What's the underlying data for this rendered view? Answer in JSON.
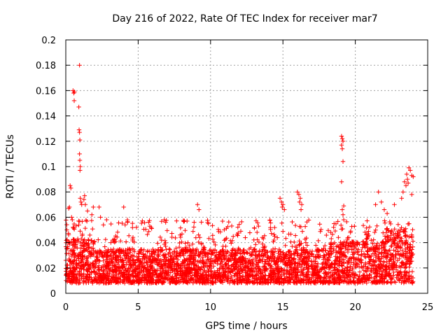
{
  "chart_data": {
    "type": "scatter",
    "title": "Day 216 of 2022, Rate Of TEC Index for receiver mar7",
    "xlabel": "GPS time / hours",
    "ylabel": "ROTI / TECUs",
    "xlim": [
      0,
      25
    ],
    "ylim": [
      0,
      0.2
    ],
    "xticks": [
      0,
      5,
      10,
      15,
      20,
      25
    ],
    "xtick_labels": [
      "0",
      "5",
      "10",
      "15",
      "20",
      "25"
    ],
    "yticks": [
      0,
      0.02,
      0.04,
      0.06,
      0.08,
      0.1,
      0.12,
      0.14,
      0.16,
      0.18,
      0.2
    ],
    "ytick_labels": [
      "0",
      "0.02",
      "0.04",
      "0.06",
      "0.08",
      "0.1",
      "0.12",
      "0.14",
      "0.16",
      "0.18",
      "0.2"
    ],
    "grid": true,
    "marker": "+",
    "color": "#ff0000",
    "series": [
      {
        "name": "ROTI",
        "points": [
          [
            0.3,
            0.085
          ],
          [
            0.35,
            0.083
          ],
          [
            0.2,
            0.067
          ],
          [
            0.25,
            0.068
          ],
          [
            0.4,
            0.06
          ],
          [
            0.45,
            0.058
          ],
          [
            0.5,
            0.16
          ],
          [
            0.55,
            0.158
          ],
          [
            0.6,
            0.159
          ],
          [
            0.58,
            0.152
          ],
          [
            0.95,
            0.18
          ],
          [
            0.9,
            0.147
          ],
          [
            0.92,
            0.129
          ],
          [
            0.95,
            0.127
          ],
          [
            0.97,
            0.121
          ],
          [
            0.95,
            0.11
          ],
          [
            0.97,
            0.105
          ],
          [
            1.0,
            0.1
          ],
          [
            0.98,
            0.097
          ],
          [
            1.0,
            0.075
          ],
          [
            1.05,
            0.072
          ],
          [
            1.1,
            0.07
          ],
          [
            1.3,
            0.077
          ],
          [
            1.25,
            0.074
          ],
          [
            1.35,
            0.07
          ],
          [
            1.5,
            0.065
          ],
          [
            1.8,
            0.062
          ],
          [
            1.9,
            0.068
          ],
          [
            2.3,
            0.068
          ],
          [
            2.4,
            0.06
          ],
          [
            2.6,
            0.054
          ],
          [
            4.0,
            0.068
          ],
          [
            4.1,
            0.054
          ],
          [
            5.8,
            0.053
          ],
          [
            5.9,
            0.052
          ],
          [
            6.8,
            0.058
          ],
          [
            6.9,
            0.056
          ],
          [
            9.1,
            0.07
          ],
          [
            9.2,
            0.066
          ],
          [
            9.8,
            0.056
          ],
          [
            9.85,
            0.055
          ],
          [
            14.8,
            0.075
          ],
          [
            14.9,
            0.072
          ],
          [
            15.0,
            0.07
          ],
          [
            15.1,
            0.066
          ],
          [
            14.95,
            0.068
          ],
          [
            16.0,
            0.08
          ],
          [
            16.1,
            0.078
          ],
          [
            16.2,
            0.075
          ],
          [
            16.15,
            0.072
          ],
          [
            16.3,
            0.07
          ],
          [
            16.25,
            0.066
          ],
          [
            19.05,
            0.124
          ],
          [
            19.1,
            0.122
          ],
          [
            19.15,
            0.12
          ],
          [
            19.05,
            0.117
          ],
          [
            19.1,
            0.114
          ],
          [
            19.15,
            0.104
          ],
          [
            19.05,
            0.088
          ],
          [
            19.2,
            0.069
          ],
          [
            19.1,
            0.066
          ],
          [
            19.15,
            0.062
          ],
          [
            19.2,
            0.058
          ],
          [
            21.6,
            0.08
          ],
          [
            21.8,
            0.072
          ],
          [
            21.4,
            0.07
          ],
          [
            22.0,
            0.066
          ],
          [
            22.2,
            0.063
          ],
          [
            22.7,
            0.07
          ],
          [
            23.2,
            0.075
          ],
          [
            23.3,
            0.08
          ],
          [
            23.5,
            0.085
          ],
          [
            23.6,
            0.09
          ],
          [
            23.7,
            0.099
          ],
          [
            23.8,
            0.097
          ],
          [
            23.9,
            0.093
          ],
          [
            24.0,
            0.092
          ],
          [
            23.4,
            0.088
          ],
          [
            23.55,
            0.094
          ],
          [
            23.65,
            0.087
          ],
          [
            23.9,
            0.078
          ]
        ],
        "baseline": {
          "x_range": [
            0,
            24
          ],
          "typical_range": [
            0.008,
            0.035
          ],
          "secondary_spike_range_max": 0.058
        }
      }
    ]
  }
}
